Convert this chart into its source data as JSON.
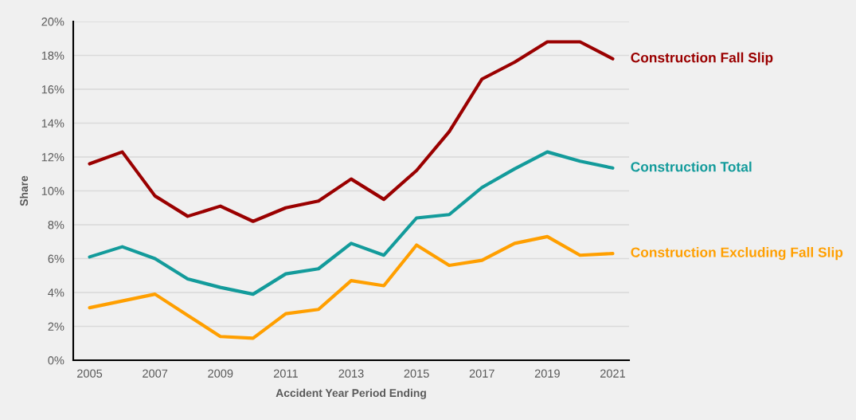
{
  "chart_data": {
    "type": "line",
    "xlabel": "Accident Year Period Ending",
    "ylabel": "Share",
    "x": [
      2005,
      2006,
      2007,
      2008,
      2009,
      2010,
      2011,
      2012,
      2013,
      2014,
      2015,
      2016,
      2017,
      2018,
      2019,
      2020,
      2021
    ],
    "series": [
      {
        "name": "Construction Fall Slip",
        "color": "#9a0000",
        "values": [
          11.6,
          12.3,
          9.7,
          8.5,
          9.1,
          8.2,
          9.0,
          9.4,
          10.7,
          9.5,
          11.2,
          13.5,
          16.6,
          17.6,
          18.8,
          18.8,
          17.8
        ]
      },
      {
        "name": "Construction Total",
        "color": "#139b9b",
        "values": [
          6.1,
          6.7,
          6.0,
          4.8,
          4.3,
          3.9,
          5.1,
          5.4,
          6.9,
          6.2,
          8.4,
          8.6,
          10.2,
          11.3,
          12.3,
          11.75,
          11.35
        ]
      },
      {
        "name": "Construction Excluding Fall Slip",
        "color": "#ff9f00",
        "values": [
          3.1,
          3.5,
          3.9,
          2.65,
          1.4,
          1.3,
          2.75,
          3.0,
          4.7,
          4.4,
          6.8,
          5.6,
          5.9,
          6.9,
          7.3,
          6.2,
          6.3
        ]
      }
    ],
    "xlim": [
      2004.5,
      2021.5
    ],
    "xticks": [
      2005,
      2007,
      2009,
      2011,
      2013,
      2015,
      2017,
      2019,
      2021
    ],
    "ylim": [
      0,
      20
    ],
    "yticks": [
      {
        "value": 0,
        "label": "0%"
      },
      {
        "value": 2,
        "label": "2%"
      },
      {
        "value": 4,
        "label": "4%"
      },
      {
        "value": 6,
        "label": "6%"
      },
      {
        "value": 8,
        "label": "8%"
      },
      {
        "value": 10,
        "label": "10%"
      },
      {
        "value": 12,
        "label": "12%"
      },
      {
        "value": 14,
        "label": "14%"
      },
      {
        "value": 16,
        "label": "16%"
      },
      {
        "value": 18,
        "label": "18%"
      },
      {
        "value": 20,
        "label": "20%"
      }
    ],
    "grid": "y",
    "legend": false,
    "marker": "none",
    "line_style": "solid"
  }
}
